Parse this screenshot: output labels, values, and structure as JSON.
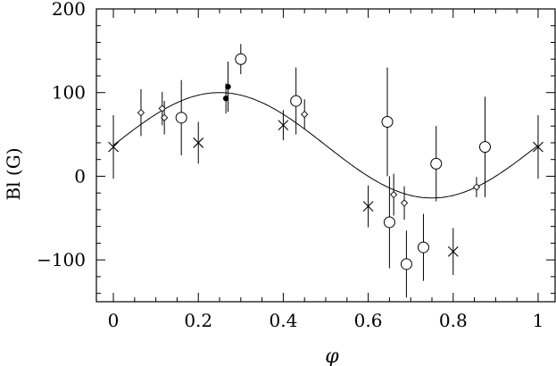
{
  "chart_data": {
    "type": "scatter",
    "ylabel": "Bl (G)",
    "xlabel": "φ",
    "xlim": [
      -0.04,
      1.04
    ],
    "ylim": [
      -150,
      200
    ],
    "x_ticks": [
      0,
      0.2,
      0.4,
      0.6,
      0.8,
      1
    ],
    "x_tick_labels": [
      "0",
      "0.2",
      "0.4",
      "0.6",
      "0.8",
      "1"
    ],
    "y_ticks": [
      -100,
      0,
      100,
      200
    ],
    "y_tick_labels": [
      "−100",
      "0",
      "100",
      "200"
    ],
    "grid": false,
    "legend": "none",
    "model_curve": {
      "type": "sinusoid",
      "offset": 37,
      "amplitude": 63,
      "phase_of_max": 0.25
    },
    "series": [
      {
        "marker": "circle",
        "points": [
          {
            "x": 0.16,
            "y": 70,
            "err": 45
          },
          {
            "x": 0.3,
            "y": 140,
            "err": 18
          },
          {
            "x": 0.43,
            "y": 90,
            "err": 40
          },
          {
            "x": 0.645,
            "y": 65,
            "err": 65
          },
          {
            "x": 0.65,
            "y": -55,
            "err": 55
          },
          {
            "x": 0.69,
            "y": -105,
            "err": 40
          },
          {
            "x": 0.73,
            "y": -85,
            "err": 40
          },
          {
            "x": 0.76,
            "y": 15,
            "err": 45
          },
          {
            "x": 0.875,
            "y": 35,
            "err": 60
          }
        ]
      },
      {
        "marker": "diamond",
        "points": [
          {
            "x": 0.065,
            "y": 76,
            "err": 28
          },
          {
            "x": 0.115,
            "y": 81,
            "err": 20
          },
          {
            "x": 0.12,
            "y": 70,
            "err": 20
          },
          {
            "x": 0.45,
            "y": 74,
            "err": 18
          },
          {
            "x": 0.66,
            "y": -22,
            "err": 25
          },
          {
            "x": 0.685,
            "y": -32,
            "err": 20
          },
          {
            "x": 0.855,
            "y": -13,
            "err": 12
          }
        ]
      },
      {
        "marker": "cross",
        "points": [
          {
            "x": 0.0,
            "y": 35,
            "err": 38
          },
          {
            "x": 0.2,
            "y": 40,
            "err": 25
          },
          {
            "x": 0.4,
            "y": 61,
            "err": 18
          },
          {
            "x": 0.6,
            "y": -36,
            "err": 25
          },
          {
            "x": 0.8,
            "y": -90,
            "err": 28
          },
          {
            "x": 1.0,
            "y": 35,
            "err": 38
          }
        ]
      },
      {
        "marker": "filled-circle",
        "points": [
          {
            "x": 0.265,
            "y": 93,
            "err": 18
          },
          {
            "x": 0.27,
            "y": 107,
            "err": 30
          }
        ]
      }
    ]
  }
}
